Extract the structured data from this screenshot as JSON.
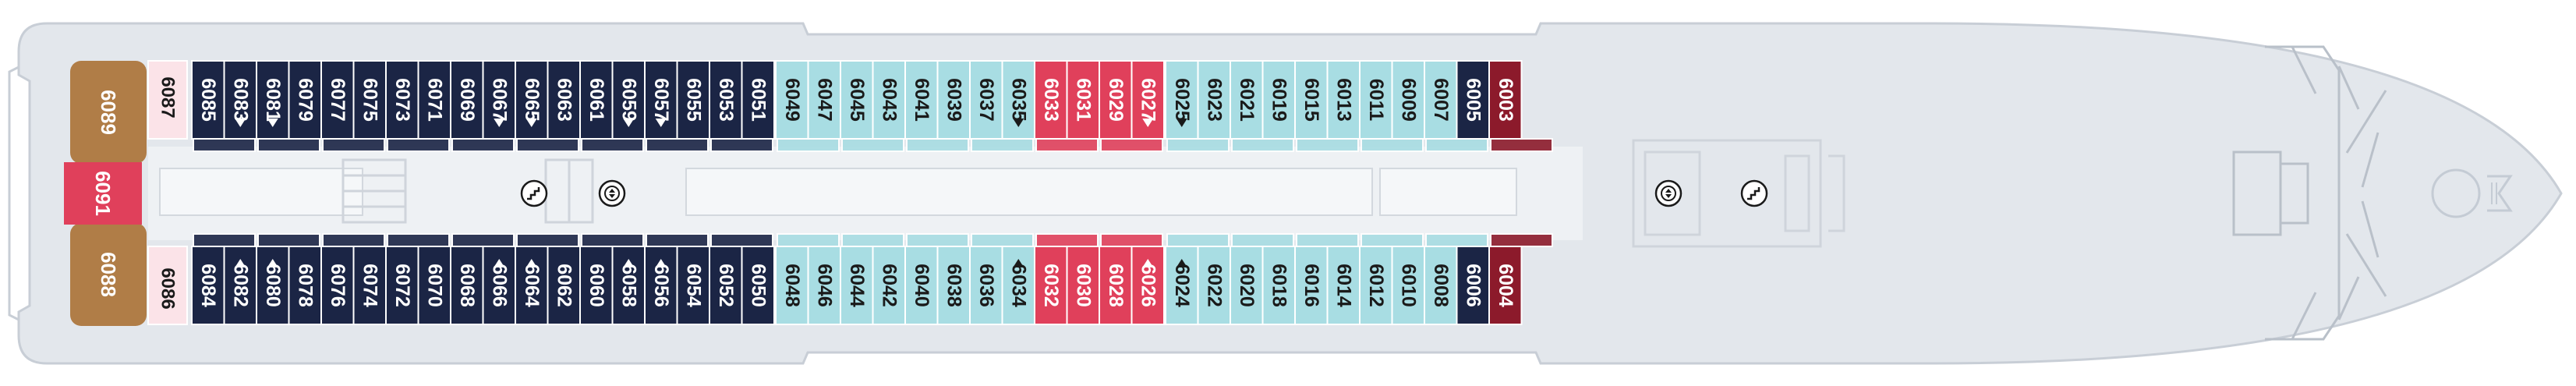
{
  "colors": {
    "hull": "#e3e7ec",
    "hull_edge": "#c8ced6",
    "corridor": "#ffffff",
    "navy": "#1b2545",
    "light": "#a8dde3",
    "red": "#e0405b",
    "dark_red": "#8c1a2b",
    "gold": "#b07d47",
    "pink_light": "#fbe3e8",
    "text_dark": "#1a1a1a",
    "text_light": "#ffffff"
  },
  "icons": [
    "stairs-icon",
    "elevator-icon",
    "bow-anchor-logo"
  ],
  "cabins_top": [
    {
      "n": "6085",
      "c": "navy"
    },
    {
      "n": "6083",
      "c": "navy"
    },
    {
      "n": "6081",
      "c": "navy"
    },
    {
      "n": "6079",
      "c": "navy"
    },
    {
      "n": "6077",
      "c": "navy"
    },
    {
      "n": "6075",
      "c": "navy"
    },
    {
      "n": "6073",
      "c": "navy"
    },
    {
      "n": "6071",
      "c": "navy"
    },
    {
      "n": "6069",
      "c": "navy"
    },
    {
      "n": "6067",
      "c": "navy"
    },
    {
      "n": "6065",
      "c": "navy"
    },
    {
      "n": "6063",
      "c": "navy"
    },
    {
      "n": "6061",
      "c": "navy"
    },
    {
      "n": "6059",
      "c": "navy"
    },
    {
      "n": "6057",
      "c": "navy"
    },
    {
      "n": "6055",
      "c": "navy"
    },
    {
      "n": "6053",
      "c": "navy"
    },
    {
      "n": "6051",
      "c": "navy"
    },
    {
      "n": "6049",
      "c": "light"
    },
    {
      "n": "6047",
      "c": "light"
    },
    {
      "n": "6045",
      "c": "light"
    },
    {
      "n": "6043",
      "c": "light"
    },
    {
      "n": "6041",
      "c": "light"
    },
    {
      "n": "6039",
      "c": "light"
    },
    {
      "n": "6037",
      "c": "light"
    },
    {
      "n": "6035",
      "c": "light"
    },
    {
      "n": "6033",
      "c": "red"
    },
    {
      "n": "6031",
      "c": "red"
    },
    {
      "n": "6029",
      "c": "red"
    },
    {
      "n": "6027",
      "c": "red"
    },
    {
      "n": "6025",
      "c": "light"
    },
    {
      "n": "6023",
      "c": "light"
    },
    {
      "n": "6021",
      "c": "light"
    },
    {
      "n": "6019",
      "c": "light"
    },
    {
      "n": "6015",
      "c": "light"
    },
    {
      "n": "6013",
      "c": "light"
    },
    {
      "n": "6011",
      "c": "light"
    },
    {
      "n": "6009",
      "c": "light"
    },
    {
      "n": "6007",
      "c": "light"
    },
    {
      "n": "6005",
      "c": "navy"
    },
    {
      "n": "6003",
      "c": "dark_red"
    }
  ],
  "cabins_bottom": [
    {
      "n": "6084",
      "c": "navy"
    },
    {
      "n": "6082",
      "c": "navy"
    },
    {
      "n": "6080",
      "c": "navy"
    },
    {
      "n": "6078",
      "c": "navy"
    },
    {
      "n": "6076",
      "c": "navy"
    },
    {
      "n": "6074",
      "c": "navy"
    },
    {
      "n": "6072",
      "c": "navy"
    },
    {
      "n": "6070",
      "c": "navy"
    },
    {
      "n": "6068",
      "c": "navy"
    },
    {
      "n": "6066",
      "c": "navy"
    },
    {
      "n": "6064",
      "c": "navy"
    },
    {
      "n": "6062",
      "c": "navy"
    },
    {
      "n": "6060",
      "c": "navy"
    },
    {
      "n": "6058",
      "c": "navy"
    },
    {
      "n": "6056",
      "c": "navy"
    },
    {
      "n": "6054",
      "c": "navy"
    },
    {
      "n": "6052",
      "c": "navy"
    },
    {
      "n": "6050",
      "c": "navy"
    },
    {
      "n": "6048",
      "c": "light"
    },
    {
      "n": "6046",
      "c": "light"
    },
    {
      "n": "6044",
      "c": "light"
    },
    {
      "n": "6042",
      "c": "light"
    },
    {
      "n": "6040",
      "c": "light"
    },
    {
      "n": "6038",
      "c": "light"
    },
    {
      "n": "6036",
      "c": "light"
    },
    {
      "n": "6034",
      "c": "light"
    },
    {
      "n": "6032",
      "c": "red"
    },
    {
      "n": "6030",
      "c": "red"
    },
    {
      "n": "6028",
      "c": "red"
    },
    {
      "n": "6026",
      "c": "red"
    },
    {
      "n": "6024",
      "c": "light"
    },
    {
      "n": "6022",
      "c": "light"
    },
    {
      "n": "6020",
      "c": "light"
    },
    {
      "n": "6018",
      "c": "light"
    },
    {
      "n": "6016",
      "c": "light"
    },
    {
      "n": "6014",
      "c": "light"
    },
    {
      "n": "6012",
      "c": "light"
    },
    {
      "n": "6010",
      "c": "light"
    },
    {
      "n": "6008",
      "c": "light"
    },
    {
      "n": "6006",
      "c": "navy"
    },
    {
      "n": "6004",
      "c": "dark_red"
    }
  ],
  "aft": {
    "suite_top": "6089",
    "suite_bottom": "6088",
    "suite_middle": "6091",
    "small_top": "6087",
    "small_bottom": "6086"
  },
  "accessible_markers_top": [
    "6083",
    "6081",
    "6067",
    "6065",
    "6059",
    "6057",
    "6035",
    "6027",
    "6025"
  ],
  "accessible_markers_bottom": [
    "6082",
    "6080",
    "6066",
    "6064",
    "6058",
    "6056",
    "6034",
    "6026",
    "6024"
  ]
}
